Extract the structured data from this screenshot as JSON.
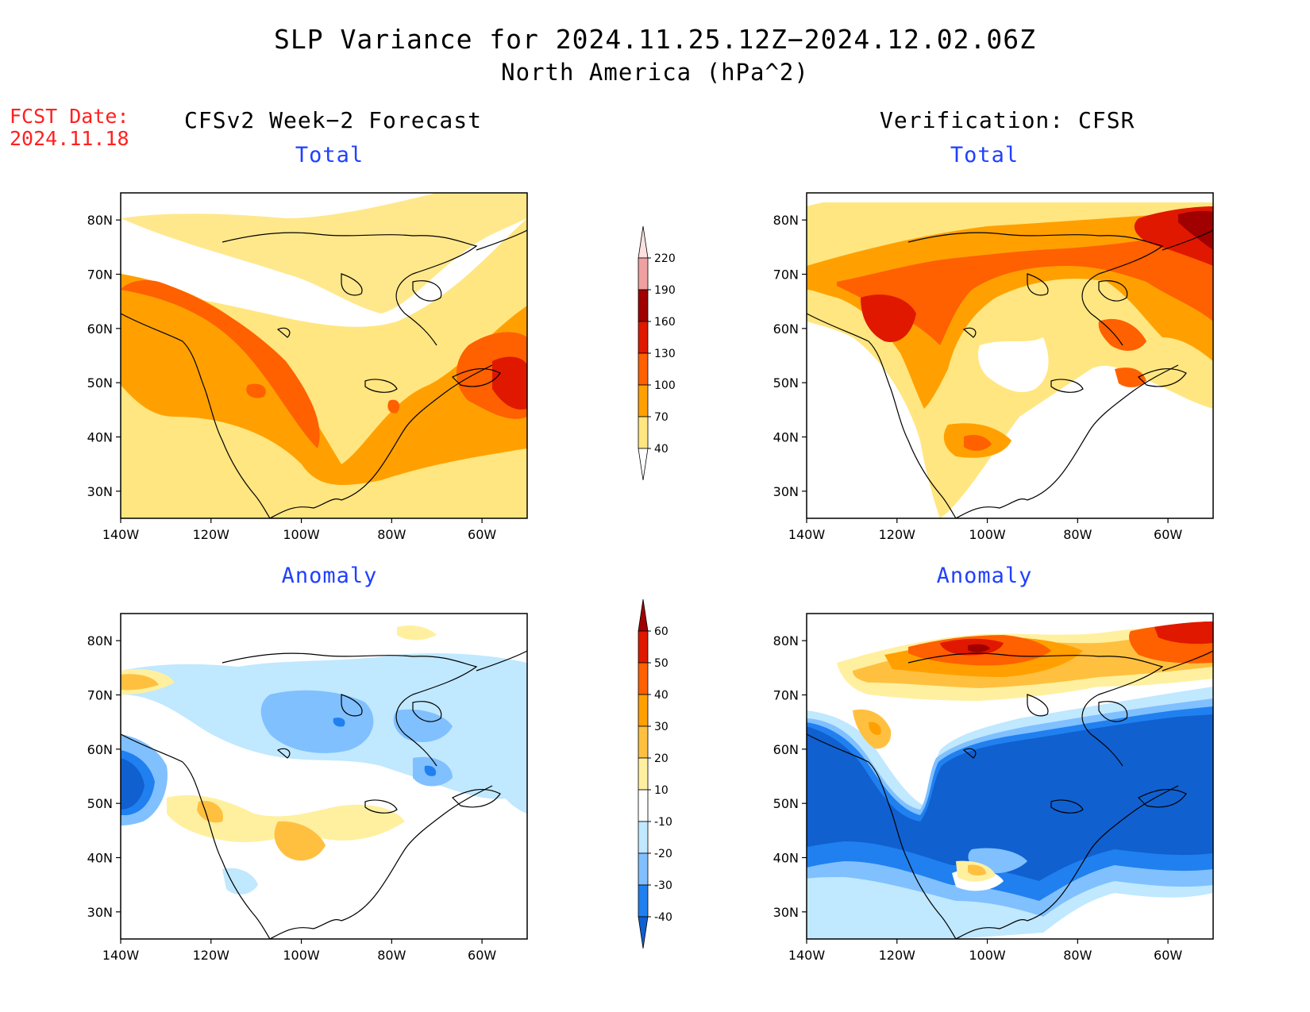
{
  "title": {
    "line1": "SLP Variance for 2024.11.25.12Z−2024.12.02.06Z",
    "line2": "North America (hPa^2)"
  },
  "fcst_date": {
    "label": "FCST Date:",
    "value": "2024.11.18"
  },
  "columns": {
    "left": "CFSv2 Week−2 Forecast",
    "right": "Verification: CFSR"
  },
  "panels": [
    {
      "title": "Total",
      "source": "forecast",
      "field": "total"
    },
    {
      "title": "Total",
      "source": "verification",
      "field": "total"
    },
    {
      "title": "Anomaly",
      "source": "forecast",
      "field": "anomaly"
    },
    {
      "title": "Anomaly",
      "source": "verification",
      "field": "anomaly"
    }
  ],
  "axes": {
    "lat_labels": [
      "80N",
      "70N",
      "60N",
      "50N",
      "40N",
      "30N"
    ],
    "lat_values": [
      80,
      70,
      60,
      50,
      40,
      30
    ],
    "lon_labels": [
      "140W",
      "120W",
      "100W",
      "80W",
      "60W"
    ],
    "lon_values": [
      -140,
      -120,
      -100,
      -80,
      -60
    ],
    "lat_range": [
      25,
      85
    ],
    "lon_range": [
      -140,
      -50
    ]
  },
  "total_colorbar": {
    "levels": [
      "40",
      "70",
      "100",
      "130",
      "160",
      "190",
      "220"
    ],
    "colors": [
      "#ffffff",
      "#ffe680",
      "#ffa000",
      "#ff6000",
      "#e01800",
      "#a00000",
      "#f0a0a0",
      "#ffe0e0"
    ]
  },
  "anomaly_colorbar": {
    "levels": [
      "-40",
      "-30",
      "-20",
      "-10",
      "10",
      "20",
      "30",
      "40",
      "50",
      "60"
    ],
    "colors": [
      "#1060d0",
      "#2080f0",
      "#80c0ff",
      "#c0e8ff",
      "#ffffff",
      "#fff0a0",
      "#ffc040",
      "#ffa000",
      "#ff6000",
      "#e01800",
      "#a00000"
    ]
  }
}
